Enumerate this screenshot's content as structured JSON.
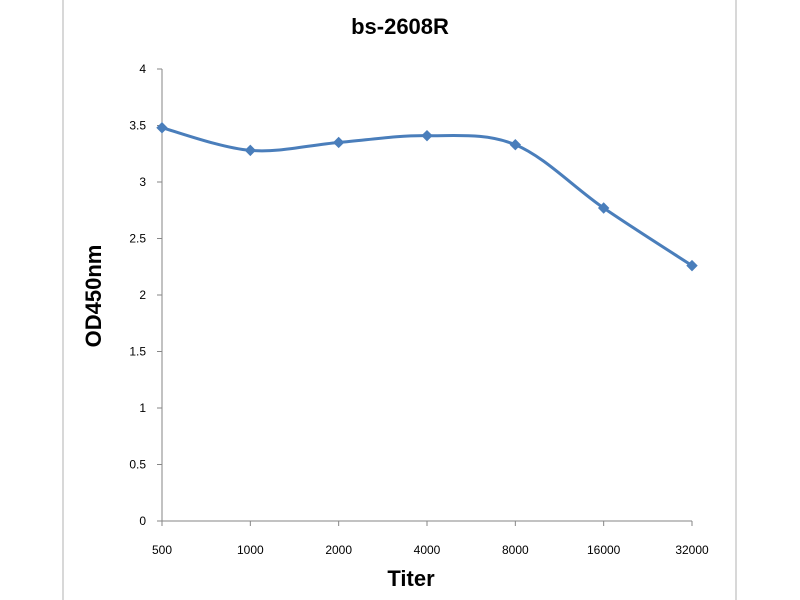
{
  "chart_data": {
    "type": "line",
    "title": "bs-2608R",
    "xlabel": "Titer",
    "ylabel": "OD450nm",
    "categories": [
      "500",
      "1000",
      "2000",
      "4000",
      "8000",
      "16000",
      "32000"
    ],
    "series": [
      {
        "values": [
          3.48,
          3.28,
          3.35,
          3.41,
          3.33,
          2.77,
          2.26
        ]
      }
    ],
    "ylim": [
      0,
      4
    ],
    "yticks": [
      "0",
      "0.5",
      "1",
      "1.5",
      "2",
      "2.5",
      "3",
      "3.5",
      "4"
    ],
    "grid": false,
    "legend": "none",
    "colors": {
      "line": "#4A7EBB",
      "axis": "#868686",
      "frame": "#000000"
    }
  }
}
